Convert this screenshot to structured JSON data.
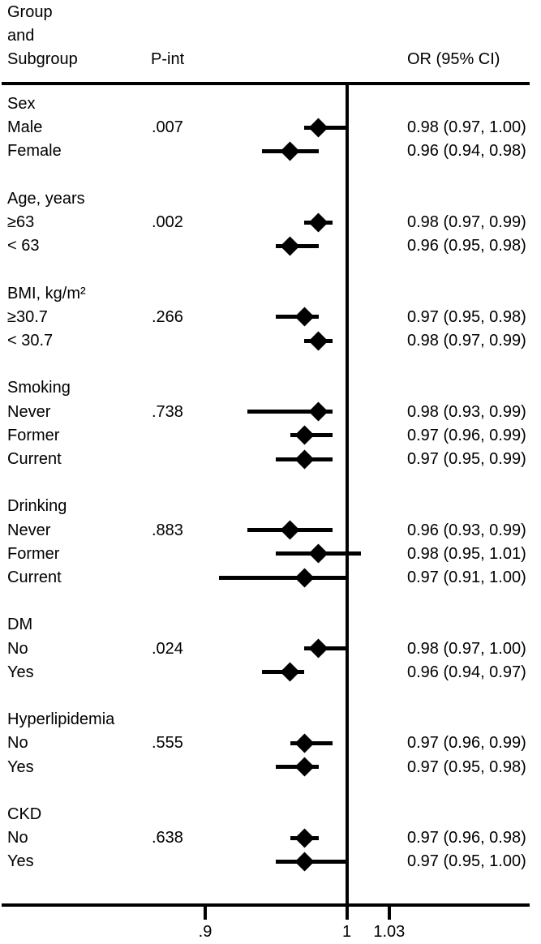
{
  "header": {
    "group_lines": [
      "Group",
      "and",
      "Subgroup"
    ],
    "p_int": "P-int",
    "or_ci": "OR (95% CI)"
  },
  "colors": {
    "ink": "#000000",
    "background": "#ffffff"
  },
  "chart_data": {
    "type": "forest",
    "effect_measure": "OR (95% CI)",
    "ref_line": 1,
    "xlim": [
      0.86,
      1.13
    ],
    "x_ticks": [
      {
        "label": ".9",
        "value": 0.9
      },
      {
        "label": "1",
        "value": 1
      },
      {
        "label": "1.03",
        "value": 1.03
      }
    ],
    "sections": [
      {
        "name": "Sex",
        "p_int": ".007",
        "rows": [
          {
            "label": "Male",
            "or": 0.98,
            "lo": 0.97,
            "hi": 1.0,
            "text": "0.98 (0.97, 1.00)"
          },
          {
            "label": "Female",
            "or": 0.96,
            "lo": 0.94,
            "hi": 0.98,
            "text": "0.96 (0.94, 0.98)"
          }
        ]
      },
      {
        "name": "Age, years",
        "p_int": ".002",
        "rows": [
          {
            "label": "≥63",
            "or": 0.98,
            "lo": 0.97,
            "hi": 0.99,
            "text": "0.98 (0.97, 0.99)"
          },
          {
            "label": "< 63",
            "or": 0.96,
            "lo": 0.95,
            "hi": 0.98,
            "text": "0.96 (0.95, 0.98)"
          }
        ]
      },
      {
        "name": "BMI, kg/m²",
        "p_int": ".266",
        "rows": [
          {
            "label": "≥30.7",
            "or": 0.97,
            "lo": 0.95,
            "hi": 0.98,
            "text": "0.97 (0.95, 0.98)"
          },
          {
            "label": "< 30.7",
            "or": 0.98,
            "lo": 0.97,
            "hi": 0.99,
            "text": "0.98 (0.97, 0.99)"
          }
        ]
      },
      {
        "name": "Smoking",
        "p_int": ".738",
        "rows": [
          {
            "label": "Never",
            "or": 0.98,
            "lo": 0.93,
            "hi": 0.99,
            "text": "0.98 (0.93, 0.99)"
          },
          {
            "label": "Former",
            "or": 0.97,
            "lo": 0.96,
            "hi": 0.99,
            "text": "0.97 (0.96, 0.99)"
          },
          {
            "label": "Current",
            "or": 0.97,
            "lo": 0.95,
            "hi": 0.99,
            "text": "0.97 (0.95, 0.99)"
          }
        ]
      },
      {
        "name": "Drinking",
        "p_int": ".883",
        "rows": [
          {
            "label": "Never",
            "or": 0.96,
            "lo": 0.93,
            "hi": 0.99,
            "text": "0.96 (0.93, 0.99)"
          },
          {
            "label": "Former",
            "or": 0.98,
            "lo": 0.95,
            "hi": 1.01,
            "text": "0.98 (0.95, 1.01)"
          },
          {
            "label": "Current",
            "or": 0.97,
            "lo": 0.91,
            "hi": 1.0,
            "text": "0.97 (0.91, 1.00)"
          }
        ]
      },
      {
        "name": "DM",
        "p_int": ".024",
        "rows": [
          {
            "label": "No",
            "or": 0.98,
            "lo": 0.97,
            "hi": 1.0,
            "text": "0.98 (0.97, 1.00)"
          },
          {
            "label": "Yes",
            "or": 0.96,
            "lo": 0.94,
            "hi": 0.97,
            "text": "0.96 (0.94, 0.97)"
          }
        ]
      },
      {
        "name": "Hyperlipidemia",
        "p_int": ".555",
        "rows": [
          {
            "label": "No",
            "or": 0.97,
            "lo": 0.96,
            "hi": 0.99,
            "text": "0.97 (0.96, 0.99)"
          },
          {
            "label": "Yes",
            "or": 0.97,
            "lo": 0.95,
            "hi": 0.98,
            "text": "0.97 (0.95, 0.98)"
          }
        ]
      },
      {
        "name": "CKD",
        "p_int": ".638",
        "rows": [
          {
            "label": "No",
            "or": 0.97,
            "lo": 0.96,
            "hi": 0.98,
            "text": "0.97 (0.96, 0.98)"
          },
          {
            "label": "Yes",
            "or": 0.97,
            "lo": 0.95,
            "hi": 1.0,
            "text": "0.97 (0.95, 1.00)"
          }
        ]
      }
    ]
  }
}
